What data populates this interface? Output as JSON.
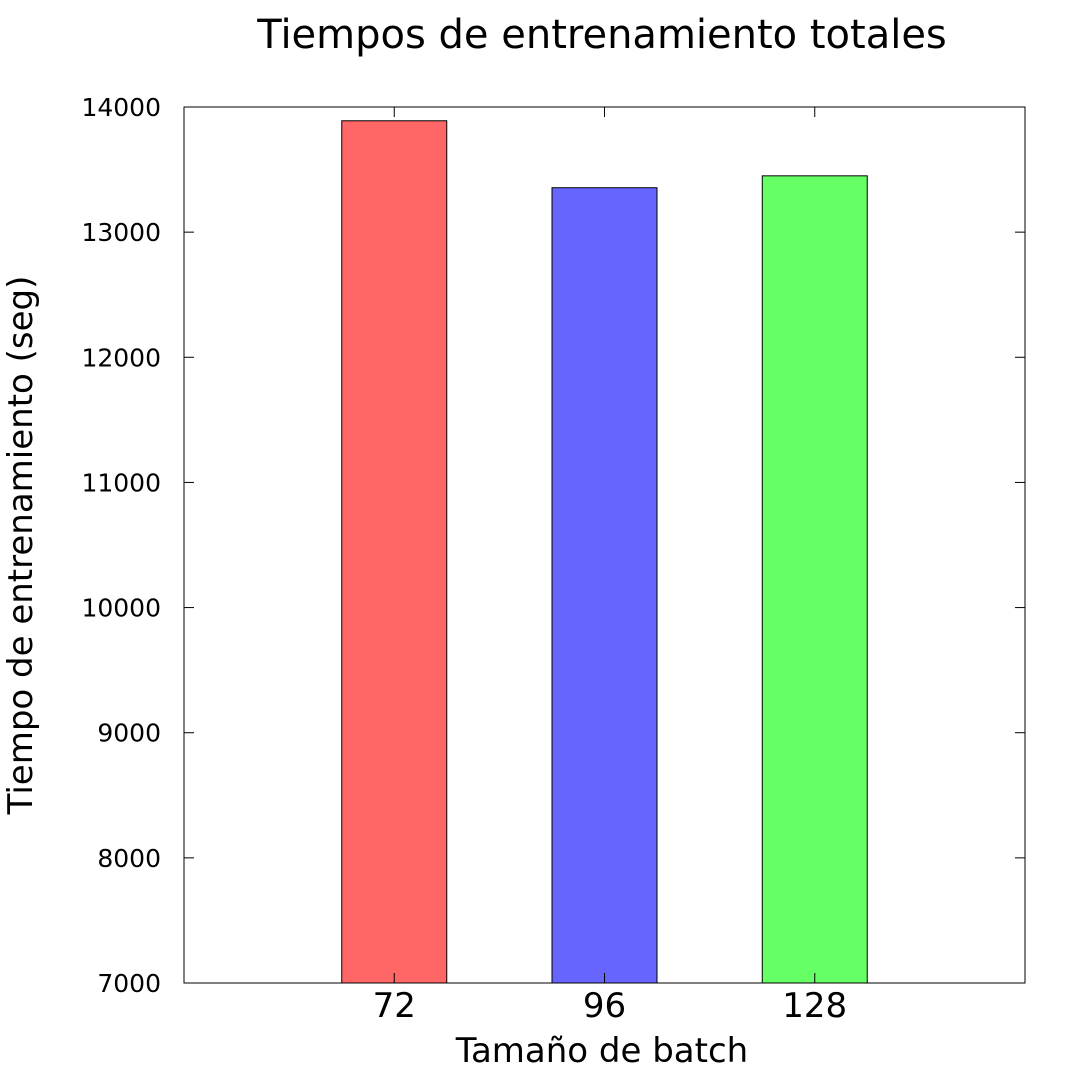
{
  "chart_data": {
    "type": "bar",
    "title": "Tiempos de entrenamiento totales",
    "xlabel": "Tamaño de batch",
    "ylabel": "Tiempo de entrenamiento (seg)",
    "categories": [
      "72",
      "96",
      "128"
    ],
    "values": [
      13890,
      13355,
      13450
    ],
    "bar_colors": [
      "#ff6666",
      "#6666ff",
      "#66ff66"
    ],
    "ylim": [
      7000,
      14000
    ],
    "yticks": [
      "7000",
      "8000",
      "9000",
      "10000",
      "11000",
      "12000",
      "13000",
      "14000"
    ],
    "xlim": [
      0,
      4
    ],
    "grid": false,
    "legend": "none"
  }
}
